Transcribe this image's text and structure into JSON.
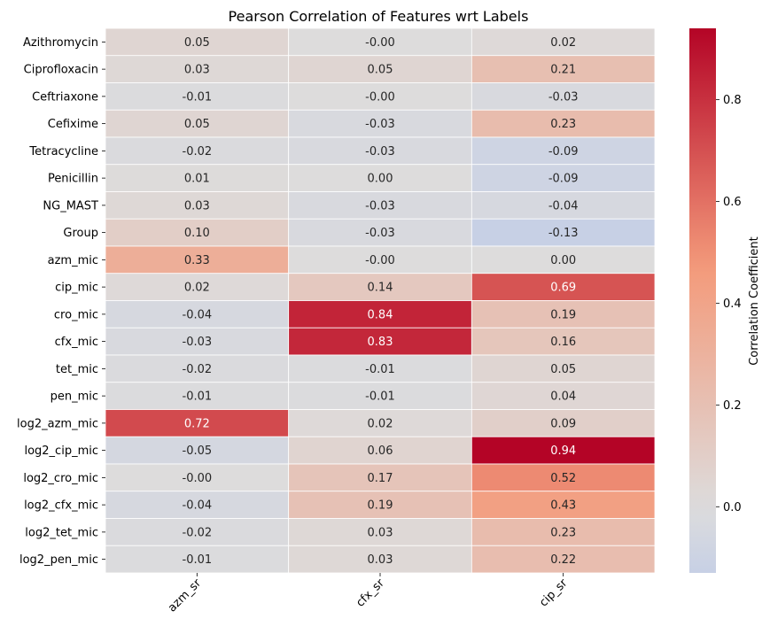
{
  "chart_data": {
    "type": "heatmap",
    "title": "Pearson Correlation of Features wrt Labels",
    "xlabel": "",
    "ylabel": "",
    "columns": [
      "azm_sr",
      "cfx_sr",
      "cip_sr"
    ],
    "rows": [
      "Azithromycin",
      "Ciprofloxacin",
      "Ceftriaxone",
      "Cefixime",
      "Tetracycline",
      "Penicillin",
      "NG_MAST",
      "Group",
      "azm_mic",
      "cip_mic",
      "cro_mic",
      "cfx_mic",
      "tet_mic",
      "pen_mic",
      "log2_azm_mic",
      "log2_cip_mic",
      "log2_cro_mic",
      "log2_cfx_mic",
      "log2_tet_mic",
      "log2_pen_mic"
    ],
    "values": [
      [
        0.05,
        -0.0,
        0.02
      ],
      [
        0.03,
        0.05,
        0.21
      ],
      [
        -0.01,
        -0.0,
        -0.03
      ],
      [
        0.05,
        -0.03,
        0.23
      ],
      [
        -0.02,
        -0.03,
        -0.09
      ],
      [
        0.01,
        0.0,
        -0.09
      ],
      [
        0.03,
        -0.03,
        -0.04
      ],
      [
        0.1,
        -0.03,
        -0.13
      ],
      [
        0.33,
        -0.0,
        0.0
      ],
      [
        0.02,
        0.14,
        0.69
      ],
      [
        -0.04,
        0.84,
        0.19
      ],
      [
        -0.03,
        0.83,
        0.16
      ],
      [
        -0.02,
        -0.01,
        0.05
      ],
      [
        -0.01,
        -0.01,
        0.04
      ],
      [
        0.72,
        0.02,
        0.09
      ],
      [
        -0.05,
        0.06,
        0.94
      ],
      [
        -0.0,
        0.17,
        0.52
      ],
      [
        -0.04,
        0.19,
        0.43
      ],
      [
        -0.02,
        0.03,
        0.23
      ],
      [
        -0.01,
        0.03,
        0.22
      ]
    ],
    "value_labels": [
      [
        "0.05",
        "-0.00",
        "0.02"
      ],
      [
        "0.03",
        "0.05",
        "0.21"
      ],
      [
        "-0.01",
        "-0.00",
        "-0.03"
      ],
      [
        "0.05",
        "-0.03",
        "0.23"
      ],
      [
        "-0.02",
        "-0.03",
        "-0.09"
      ],
      [
        "0.01",
        "0.00",
        "-0.09"
      ],
      [
        "0.03",
        "-0.03",
        "-0.04"
      ],
      [
        "0.10",
        "-0.03",
        "-0.13"
      ],
      [
        "0.33",
        "-0.00",
        "0.00"
      ],
      [
        "0.02",
        "0.14",
        "0.69"
      ],
      [
        "-0.04",
        "0.84",
        "0.19"
      ],
      [
        "-0.03",
        "0.83",
        "0.16"
      ],
      [
        "-0.02",
        "-0.01",
        "0.05"
      ],
      [
        "-0.01",
        "-0.01",
        "0.04"
      ],
      [
        "0.72",
        "0.02",
        "0.09"
      ],
      [
        "-0.05",
        "0.06",
        "0.94"
      ],
      [
        "-0.00",
        "0.17",
        "0.52"
      ],
      [
        "-0.04",
        "0.19",
        "0.43"
      ],
      [
        "-0.02",
        "0.03",
        "0.23"
      ],
      [
        "-0.01",
        "0.03",
        "0.22"
      ]
    ],
    "colorbar": {
      "label": "Correlation Coefficient",
      "range": [
        -0.13,
        0.94
      ],
      "center": 0.0,
      "colormap": "coolwarm",
      "ticks": [
        0.0,
        0.2,
        0.4,
        0.6,
        0.8
      ],
      "tick_labels": [
        "0.0",
        "0.2",
        "0.4",
        "0.6",
        "0.8"
      ]
    },
    "colors": {
      "low": "#3b4cc0",
      "mid": "#dddcdc",
      "high": "#b40426",
      "grid_line": "#ffffff"
    }
  }
}
